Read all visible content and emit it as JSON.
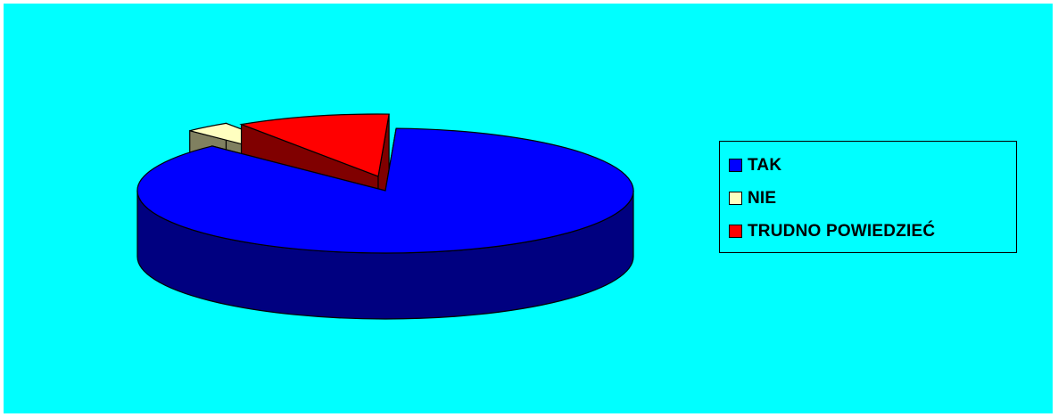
{
  "chart_data": {
    "type": "pie",
    "style": "3d-exploded",
    "categories": [
      "TAK",
      "NIE",
      "TRUDNO POWIEDZIEĆ"
    ],
    "values": [
      87,
      3,
      10
    ],
    "colors": [
      "#0000ff",
      "#ffffc0",
      "#ff0000"
    ],
    "side_colors": [
      "#000080",
      "#808060",
      "#800000"
    ],
    "legend": {
      "placement": "right"
    }
  }
}
